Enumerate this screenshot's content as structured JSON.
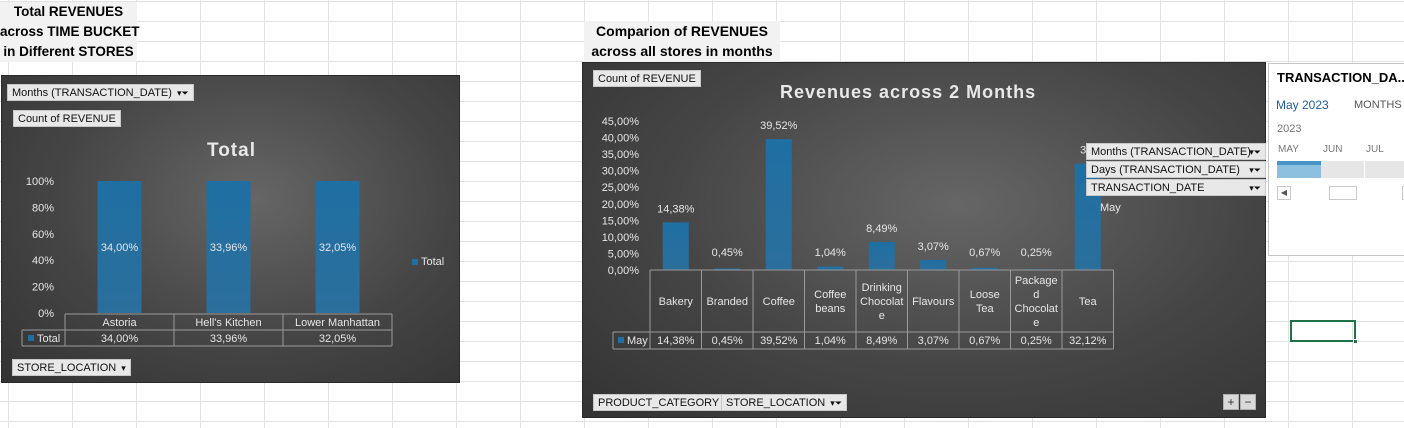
{
  "colors": {
    "bar": "#1f6fa3",
    "bar_light": "#2f85bf",
    "text_light": "#e6e6e6",
    "grid_line": "#9a9a9a",
    "timeline_fill": "#8dbfdf",
    "cell_select": "#217346"
  },
  "left_section": {
    "heading_lines": [
      "Total REVENUES",
      "across TIME BUCKET",
      "in Different STORES"
    ],
    "field_months": "Months (TRANSACTION_DATE)",
    "field_value": "Count of REVENUE",
    "field_axis": "STORE_LOCATION",
    "legend_label": "Total"
  },
  "right_section": {
    "heading_lines": [
      "Comparion of REVENUES",
      "across all stores in months"
    ],
    "field_value": "Count of REVENUE",
    "filter_fields": [
      "Months (TRANSACTION_DATE)",
      "Days (TRANSACTION_DATE)",
      "TRANSACTION_DATE"
    ],
    "legend_label": "May",
    "axis_fields": [
      "PRODUCT_CATEGORY",
      "STORE_LOCATION"
    ],
    "zoom_in": "+",
    "zoom_out": "−"
  },
  "slicer": {
    "title": "TRANSACTION_DA...",
    "selected_period": "May 2023",
    "level": "MONTHS",
    "year": "2023",
    "months": [
      "MAY",
      "JUN",
      "JUL"
    ],
    "selected_months": [
      "MAY"
    ]
  },
  "chart_data": [
    {
      "type": "bar",
      "title": "Total",
      "categories": [
        "Astoria",
        "Hell's Kitchen",
        "Lower Manhattan"
      ],
      "series": [
        {
          "name": "Total",
          "values": [
            34.0,
            33.96,
            32.05
          ],
          "labels": [
            "34,00%",
            "33,96%",
            "32,05%"
          ]
        }
      ],
      "ylim": [
        0,
        100
      ],
      "yticks": [
        "0%",
        "20%",
        "40%",
        "60%",
        "80%",
        "100%"
      ],
      "data_table": true,
      "legend": "right",
      "grid": false
    },
    {
      "type": "bar",
      "title": "Revenues across 2 Months",
      "categories": [
        "Bakery",
        "Branded",
        "Coffee",
        "Coffee beans",
        "Drinking Chocolate",
        "Flavours",
        "Loose Tea",
        "Packaged Chocolate",
        "Tea"
      ],
      "category_display": [
        [
          "Bakery"
        ],
        [
          "Branded"
        ],
        [
          "Coffee"
        ],
        [
          "Coffee",
          "beans"
        ],
        [
          "Drinking",
          "Chocolat",
          "e"
        ],
        [
          "Flavours"
        ],
        [
          "Loose",
          "Tea"
        ],
        [
          "Package",
          "d",
          "Chocolat",
          "e"
        ],
        [
          "Tea"
        ]
      ],
      "series": [
        {
          "name": "May",
          "values": [
            14.38,
            0.45,
            39.52,
            1.04,
            8.49,
            3.07,
            0.67,
            0.25,
            32.12
          ],
          "labels": [
            "14,38%",
            "0,45%",
            "39,52%",
            "1,04%",
            "8,49%",
            "3,07%",
            "0,67%",
            "0,25%",
            "32,12%"
          ]
        }
      ],
      "ylim": [
        0,
        45
      ],
      "yticks": [
        "0,00%",
        "5,00%",
        "10,00%",
        "15,00%",
        "20,00%",
        "25,00%",
        "30,00%",
        "35,00%",
        "40,00%",
        "45,00%"
      ],
      "visible_data_labels": [
        "14,38%",
        "0,45%",
        "39,52%",
        "1,04%",
        "8,49%",
        "3,07%",
        "0,67%",
        "0,25%",
        "32,"
      ],
      "data_table": true,
      "legend": "right",
      "grid": false
    }
  ]
}
